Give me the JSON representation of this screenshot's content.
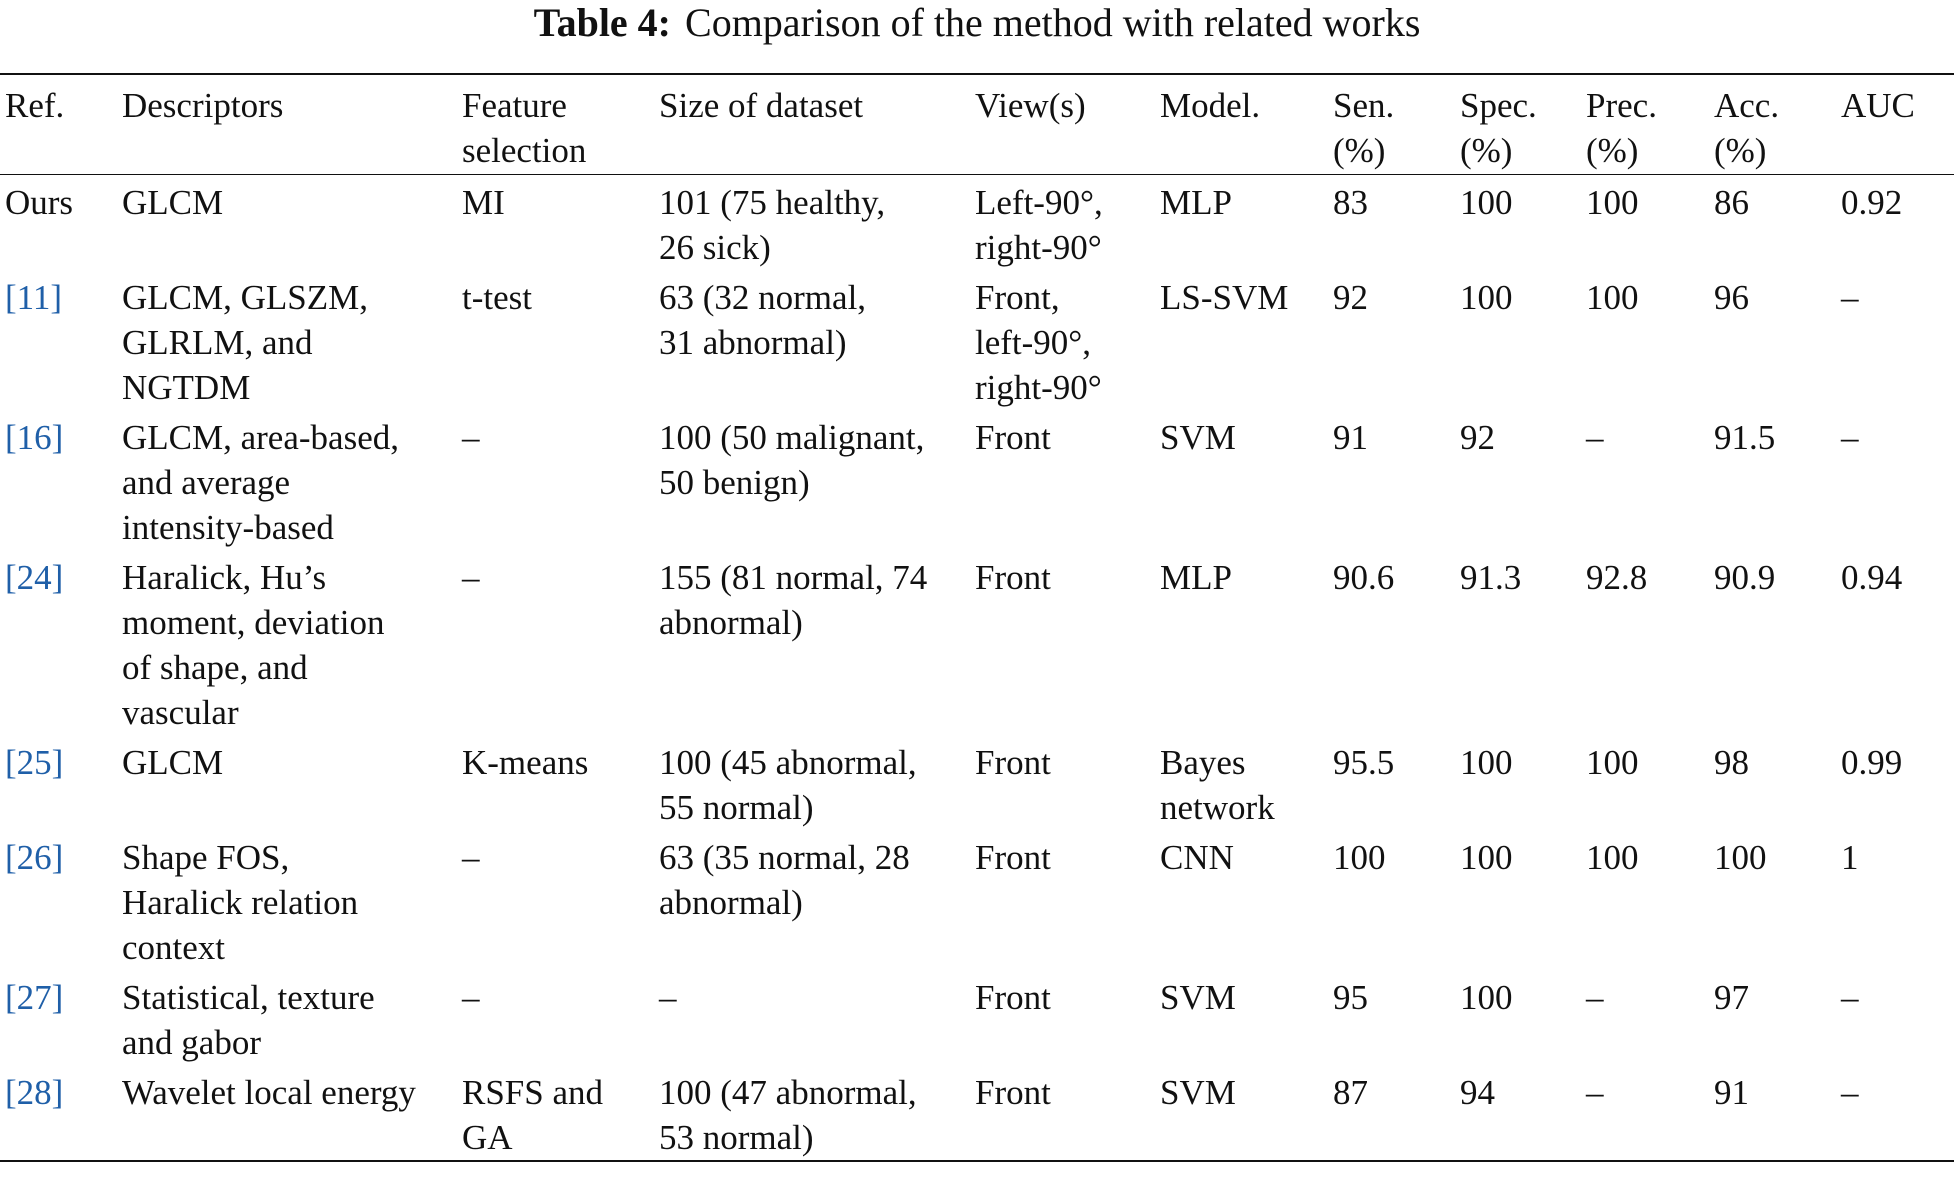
{
  "title": {
    "label": "Table 4:",
    "text": "Comparison of the method with related works"
  },
  "table": {
    "header": [
      [
        "Ref."
      ],
      [
        "Descriptors"
      ],
      [
        "Feature",
        "selection"
      ],
      [
        "Size of dataset"
      ],
      [
        "View(s)"
      ],
      [
        "Model."
      ],
      [
        "Sen.",
        "(%)"
      ],
      [
        "Spec.",
        "(%)"
      ],
      [
        "Prec.",
        "(%)"
      ],
      [
        "Acc.",
        "(%)"
      ],
      [
        "AUC"
      ]
    ],
    "rows": [
      [
        [
          "Ours"
        ],
        [
          "GLCM"
        ],
        [
          "MI"
        ],
        [
          "101 (75 healthy,",
          "26 sick)"
        ],
        [
          "Left-90°,",
          "right-90°"
        ],
        [
          "MLP"
        ],
        [
          "83"
        ],
        [
          "100"
        ],
        [
          "100"
        ],
        [
          "86"
        ],
        [
          "0.92"
        ]
      ],
      [
        [
          "[11]"
        ],
        [
          "GLCM, GLSZM,",
          "GLRLM, and",
          "NGTDM"
        ],
        [
          "t-test"
        ],
        [
          "63 (32 normal,",
          "31 abnormal)"
        ],
        [
          "Front,",
          "left-90°,",
          "right-90°"
        ],
        [
          "LS-SVM"
        ],
        [
          "92"
        ],
        [
          "100"
        ],
        [
          "100"
        ],
        [
          "96"
        ],
        [
          "–"
        ]
      ],
      [
        [
          "[16]"
        ],
        [
          "GLCM, area-based,",
          "and average",
          "intensity-based"
        ],
        [
          "–"
        ],
        [
          "100 (50 malignant,",
          "50 benign)"
        ],
        [
          "Front"
        ],
        [
          "SVM"
        ],
        [
          "91"
        ],
        [
          "92"
        ],
        [
          "–"
        ],
        [
          "91.5"
        ],
        [
          "–"
        ]
      ],
      [
        [
          "[24]"
        ],
        [
          "Haralick, Hu’s",
          "moment, deviation",
          "of shape, and",
          "vascular"
        ],
        [
          "–"
        ],
        [
          "155 (81 normal, 74",
          "abnormal)"
        ],
        [
          "Front"
        ],
        [
          "MLP"
        ],
        [
          "90.6"
        ],
        [
          "91.3"
        ],
        [
          "92.8"
        ],
        [
          "90.9"
        ],
        [
          "0.94"
        ]
      ],
      [
        [
          "[25]"
        ],
        [
          "GLCM"
        ],
        [
          "K-means"
        ],
        [
          "100 (45 abnormal,",
          "55 normal)"
        ],
        [
          "Front"
        ],
        [
          "Bayes",
          "network"
        ],
        [
          "95.5"
        ],
        [
          "100"
        ],
        [
          "100"
        ],
        [
          "98"
        ],
        [
          "0.99"
        ]
      ],
      [
        [
          "[26]"
        ],
        [
          "Shape FOS,",
          "Haralick relation",
          "context"
        ],
        [
          "–"
        ],
        [
          "63 (35 normal, 28",
          "abnormal)"
        ],
        [
          "Front"
        ],
        [
          "CNN"
        ],
        [
          "100"
        ],
        [
          "100"
        ],
        [
          "100"
        ],
        [
          "100"
        ],
        [
          "1"
        ]
      ],
      [
        [
          "[27]"
        ],
        [
          "Statistical, texture",
          "and gabor"
        ],
        [
          "–"
        ],
        [
          "–"
        ],
        [
          "Front"
        ],
        [
          "SVM"
        ],
        [
          "95"
        ],
        [
          "100"
        ],
        [
          "–"
        ],
        [
          "97"
        ],
        [
          "–"
        ]
      ],
      [
        [
          "[28]"
        ],
        [
          "Wavelet local energy"
        ],
        [
          "RSFS and",
          "GA"
        ],
        [
          "100 (47 abnormal,",
          "53 normal)"
        ],
        [
          "Front"
        ],
        [
          "SVM"
        ],
        [
          "87"
        ],
        [
          "94"
        ],
        [
          "–"
        ],
        [
          "91"
        ],
        [
          "–"
        ]
      ]
    ]
  }
}
